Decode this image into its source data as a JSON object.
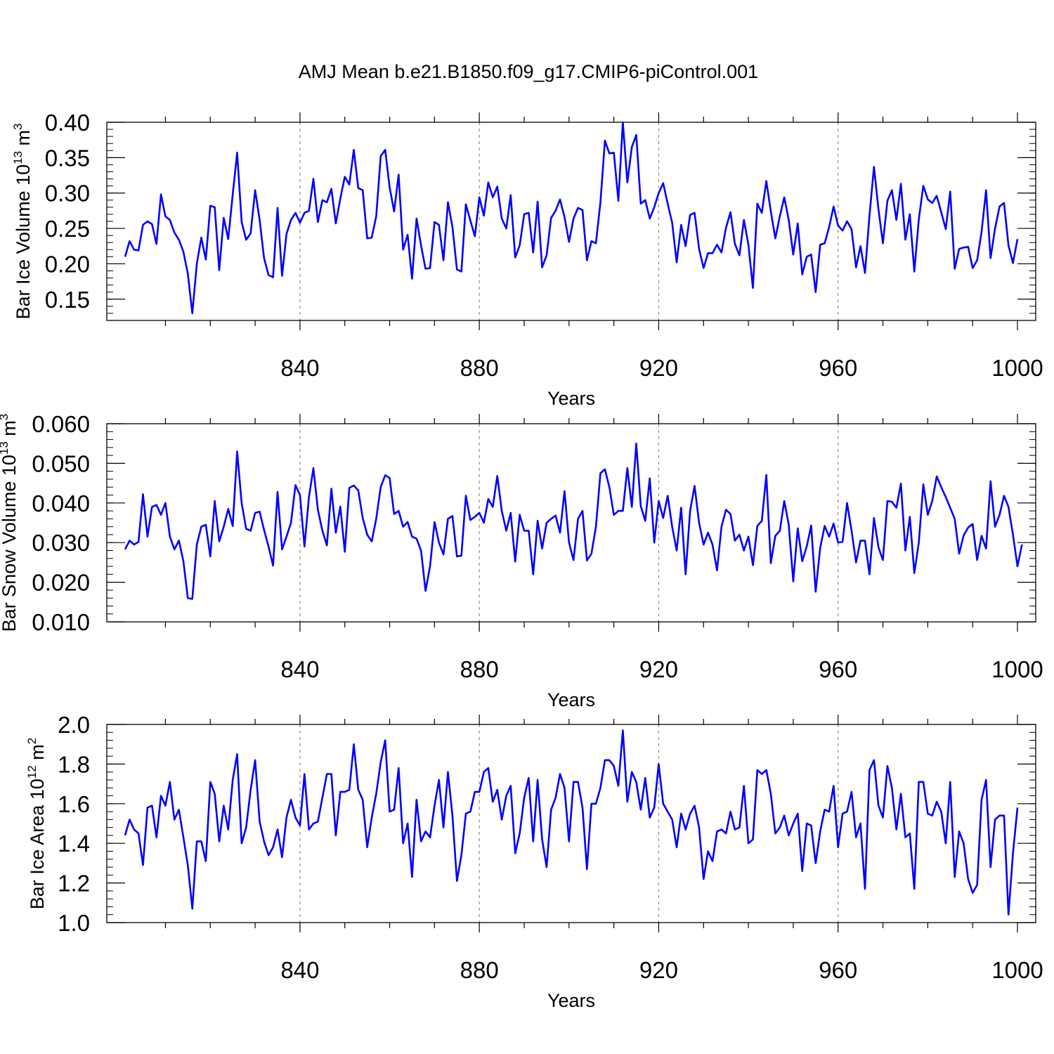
{
  "title": "AMJ Mean b.e21.B1850.f09_g17.CMIP6-piControl.001",
  "colors": {
    "line": "#0000ff",
    "axis": "#000000",
    "grid": "#8c8c8c"
  },
  "chart_data": [
    {
      "type": "line",
      "ylabel_main": "Bar Ice Volume 10",
      "ylabel_exp": "13",
      "ylabel_unit": " m",
      "ylabel_unit_exp": "3",
      "xlabel": "Years",
      "xlim": [
        801,
        1000
      ],
      "ylim": [
        0.12,
        0.4
      ],
      "yticks": [
        0.15,
        0.2,
        0.25,
        0.3,
        0.35,
        0.4
      ],
      "ytick_labels": [
        "0.15",
        "0.20",
        "0.25",
        "0.30",
        "0.35",
        "0.40"
      ],
      "xticks": [
        840,
        880,
        920,
        960,
        1000
      ],
      "xtick_labels": [
        "840",
        "880",
        "920",
        "960",
        "1000"
      ],
      "grid_x": [
        840,
        880,
        920,
        960
      ],
      "x_start": 801,
      "values": [
        0.21,
        0.232,
        0.22,
        0.219,
        0.255,
        0.26,
        0.256,
        0.228,
        0.298,
        0.267,
        0.262,
        0.244,
        0.234,
        0.217,
        0.186,
        0.13,
        0.2,
        0.237,
        0.206,
        0.282,
        0.28,
        0.191,
        0.265,
        0.235,
        0.298,
        0.357,
        0.259,
        0.234,
        0.243,
        0.304,
        0.262,
        0.208,
        0.184,
        0.181,
        0.279,
        0.183,
        0.242,
        0.262,
        0.272,
        0.258,
        0.272,
        0.275,
        0.32,
        0.259,
        0.29,
        0.287,
        0.306,
        0.257,
        0.292,
        0.323,
        0.312,
        0.361,
        0.307,
        0.304,
        0.236,
        0.237,
        0.267,
        0.352,
        0.361,
        0.308,
        0.274,
        0.326,
        0.22,
        0.241,
        0.179,
        0.264,
        0.226,
        0.193,
        0.194,
        0.259,
        0.255,
        0.205,
        0.287,
        0.252,
        0.192,
        0.189,
        0.284,
        0.261,
        0.239,
        0.294,
        0.268,
        0.315,
        0.294,
        0.309,
        0.264,
        0.25,
        0.297,
        0.209,
        0.226,
        0.27,
        0.272,
        0.216,
        0.288,
        0.195,
        0.212,
        0.265,
        0.275,
        0.291,
        0.266,
        0.231,
        0.264,
        0.279,
        0.276,
        0.205,
        0.232,
        0.229,
        0.287,
        0.374,
        0.356,
        0.357,
        0.289,
        0.4,
        0.315,
        0.365,
        0.382,
        0.285,
        0.29,
        0.264,
        0.28,
        0.3,
        0.314,
        0.285,
        0.258,
        0.202,
        0.255,
        0.225,
        0.269,
        0.272,
        0.221,
        0.194,
        0.215,
        0.215,
        0.227,
        0.216,
        0.251,
        0.273,
        0.228,
        0.212,
        0.262,
        0.227,
        0.166,
        0.285,
        0.272,
        0.317,
        0.274,
        0.236,
        0.267,
        0.294,
        0.262,
        0.213,
        0.257,
        0.185,
        0.21,
        0.213,
        0.16,
        0.227,
        0.229,
        0.252,
        0.281,
        0.254,
        0.247,
        0.26,
        0.249,
        0.195,
        0.225,
        0.187,
        0.268,
        0.337,
        0.277,
        0.229,
        0.289,
        0.304,
        0.262,
        0.313,
        0.234,
        0.27,
        0.189,
        0.263,
        0.31,
        0.291,
        0.286,
        0.296,
        0.273,
        0.249,
        0.302,
        0.193,
        0.221,
        0.223,
        0.224,
        0.194,
        0.205,
        0.245,
        0.304,
        0.208,
        0.25,
        0.281,
        0.286,
        0.226,
        0.201,
        0.235
      ]
    },
    {
      "type": "line",
      "ylabel_main": "Bar Snow Volume 10",
      "ylabel_exp": "13",
      "ylabel_unit": " m",
      "ylabel_unit_exp": "3",
      "xlabel": "Years",
      "xlim": [
        801,
        1000
      ],
      "ylim": [
        0.01,
        0.06
      ],
      "yticks": [
        0.01,
        0.02,
        0.03,
        0.04,
        0.05,
        0.06
      ],
      "ytick_labels": [
        "0.010",
        "0.020",
        "0.030",
        "0.040",
        "0.050",
        "0.060"
      ],
      "xticks": [
        840,
        880,
        920,
        960,
        1000
      ],
      "xtick_labels": [
        "840",
        "880",
        "920",
        "960",
        "1000"
      ],
      "grid_x": [
        840,
        880,
        920,
        960
      ],
      "x_start": 801,
      "values": [
        0.0283,
        0.0305,
        0.0295,
        0.0302,
        0.0422,
        0.0315,
        0.039,
        0.0395,
        0.037,
        0.04,
        0.0315,
        0.0283,
        0.0305,
        0.0253,
        0.016,
        0.0158,
        0.0295,
        0.034,
        0.0345,
        0.0265,
        0.0405,
        0.0303,
        0.034,
        0.0385,
        0.0342,
        0.053,
        0.04,
        0.0335,
        0.033,
        0.0375,
        0.0378,
        0.0332,
        0.029,
        0.0242,
        0.0428,
        0.0283,
        0.0315,
        0.035,
        0.0445,
        0.042,
        0.029,
        0.0415,
        0.0488,
        0.0383,
        0.033,
        0.0293,
        0.0436,
        0.0325,
        0.0391,
        0.0277,
        0.0438,
        0.0444,
        0.0432,
        0.0362,
        0.032,
        0.0303,
        0.036,
        0.044,
        0.047,
        0.0463,
        0.0372,
        0.038,
        0.034,
        0.0352,
        0.0315,
        0.031,
        0.028,
        0.0178,
        0.024,
        0.0352,
        0.03,
        0.027,
        0.036,
        0.0367,
        0.0265,
        0.0267,
        0.0418,
        0.0357,
        0.0365,
        0.0375,
        0.035,
        0.041,
        0.039,
        0.0468,
        0.038,
        0.033,
        0.0375,
        0.0252,
        0.037,
        0.033,
        0.033,
        0.022,
        0.0355,
        0.0285,
        0.035,
        0.036,
        0.0368,
        0.0325,
        0.043,
        0.03,
        0.0256,
        0.036,
        0.038,
        0.0255,
        0.0272,
        0.034,
        0.0475,
        0.0485,
        0.044,
        0.037,
        0.038,
        0.038,
        0.0488,
        0.039,
        0.055,
        0.0392,
        0.0355,
        0.0462,
        0.03,
        0.0405,
        0.0362,
        0.0418,
        0.034,
        0.028,
        0.0388,
        0.022,
        0.038,
        0.0443,
        0.035,
        0.0295,
        0.0325,
        0.0295,
        0.023,
        0.034,
        0.0383,
        0.0372,
        0.0305,
        0.032,
        0.028,
        0.0315,
        0.0243,
        0.0342,
        0.0355,
        0.0471,
        0.0248,
        0.0317,
        0.033,
        0.0405,
        0.0345,
        0.0202,
        0.0336,
        0.0253,
        0.029,
        0.0343,
        0.0176,
        0.0286,
        0.0342,
        0.0315,
        0.0348,
        0.03,
        0.0302,
        0.04,
        0.033,
        0.025,
        0.0305,
        0.0305,
        0.022,
        0.0362,
        0.0288,
        0.0256,
        0.0405,
        0.0403,
        0.0388,
        0.0449,
        0.028,
        0.0365,
        0.0223,
        0.03,
        0.0447,
        0.037,
        0.0405,
        0.0467,
        0.044,
        0.0415,
        0.0388,
        0.036,
        0.0272,
        0.0318,
        0.0338,
        0.0347,
        0.0256,
        0.0317,
        0.0285,
        0.0455,
        0.034,
        0.037,
        0.0418,
        0.039,
        0.032,
        0.024,
        0.0295
      ]
    },
    {
      "type": "line",
      "ylabel_main": "Bar Ice Area 10",
      "ylabel_exp": "12",
      "ylabel_unit": " m",
      "ylabel_unit_exp": "2",
      "xlabel": "Years",
      "xlim": [
        801,
        1000
      ],
      "ylim": [
        1.0,
        2.0
      ],
      "yticks": [
        1.0,
        1.2,
        1.4,
        1.6,
        1.8,
        2.0
      ],
      "ytick_labels": [
        "1.0",
        "1.2",
        "1.4",
        "1.6",
        "1.8",
        "2.0"
      ],
      "xticks": [
        840,
        880,
        920,
        960,
        1000
      ],
      "xtick_labels": [
        "840",
        "880",
        "920",
        "960",
        "1000"
      ],
      "grid_x": [
        840,
        880,
        920,
        960
      ],
      "x_start": 801,
      "values": [
        1.44,
        1.52,
        1.47,
        1.45,
        1.29,
        1.58,
        1.59,
        1.43,
        1.64,
        1.59,
        1.71,
        1.52,
        1.57,
        1.43,
        1.29,
        1.07,
        1.41,
        1.41,
        1.31,
        1.71,
        1.65,
        1.41,
        1.59,
        1.47,
        1.72,
        1.85,
        1.4,
        1.48,
        1.67,
        1.82,
        1.51,
        1.41,
        1.34,
        1.38,
        1.47,
        1.33,
        1.53,
        1.62,
        1.53,
        1.49,
        1.75,
        1.47,
        1.5,
        1.51,
        1.63,
        1.75,
        1.75,
        1.44,
        1.66,
        1.66,
        1.67,
        1.9,
        1.67,
        1.62,
        1.38,
        1.53,
        1.65,
        1.81,
        1.92,
        1.56,
        1.57,
        1.78,
        1.4,
        1.5,
        1.23,
        1.62,
        1.41,
        1.46,
        1.43,
        1.59,
        1.72,
        1.48,
        1.76,
        1.54,
        1.21,
        1.34,
        1.55,
        1.56,
        1.66,
        1.66,
        1.76,
        1.78,
        1.61,
        1.67,
        1.52,
        1.64,
        1.69,
        1.35,
        1.45,
        1.63,
        1.73,
        1.41,
        1.72,
        1.42,
        1.28,
        1.57,
        1.63,
        1.75,
        1.68,
        1.41,
        1.71,
        1.71,
        1.58,
        1.27,
        1.6,
        1.6,
        1.68,
        1.82,
        1.82,
        1.79,
        1.69,
        1.97,
        1.61,
        1.76,
        1.71,
        1.57,
        1.73,
        1.53,
        1.58,
        1.8,
        1.6,
        1.56,
        1.52,
        1.38,
        1.55,
        1.47,
        1.55,
        1.59,
        1.48,
        1.22,
        1.36,
        1.31,
        1.46,
        1.47,
        1.45,
        1.56,
        1.47,
        1.48,
        1.69,
        1.4,
        1.42,
        1.77,
        1.75,
        1.77,
        1.65,
        1.45,
        1.48,
        1.54,
        1.44,
        1.5,
        1.55,
        1.26,
        1.5,
        1.49,
        1.3,
        1.46,
        1.57,
        1.56,
        1.69,
        1.38,
        1.55,
        1.56,
        1.66,
        1.43,
        1.5,
        1.17,
        1.77,
        1.82,
        1.59,
        1.53,
        1.79,
        1.68,
        1.47,
        1.65,
        1.43,
        1.45,
        1.17,
        1.71,
        1.71,
        1.55,
        1.54,
        1.61,
        1.56,
        1.4,
        1.71,
        1.23,
        1.46,
        1.4,
        1.22,
        1.15,
        1.19,
        1.62,
        1.72,
        1.28,
        1.52,
        1.54,
        1.54,
        1.04,
        1.35,
        1.58
      ]
    }
  ]
}
